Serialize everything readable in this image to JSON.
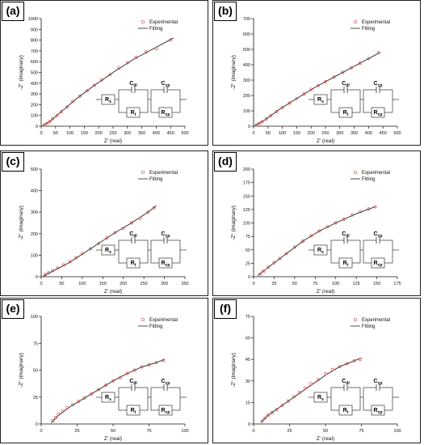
{
  "colors": {
    "experimental": "#d9534f",
    "fitting": "#222222",
    "axis": "#111111",
    "border": "#222222"
  },
  "chart_data": [
    {
      "panel_label": "(a)",
      "type": "scatter",
      "xlabel": "Z' (real)",
      "ylabel": "-Z'' (imaginary)",
      "xlim": [
        0,
        500
      ],
      "ylim": [
        0,
        1000
      ],
      "xticks": [
        0,
        50,
        100,
        150,
        200,
        250,
        300,
        350,
        400,
        450,
        500
      ],
      "yticks": [
        0,
        100,
        200,
        300,
        400,
        500,
        600,
        700,
        800,
        900,
        1000
      ],
      "legend": "top-right",
      "series": [
        {
          "name": "Experimental",
          "style": "open-circles",
          "x": [
            10,
            20,
            30,
            40,
            55,
            70,
            90,
            110,
            135,
            160,
            185,
            210,
            240,
            270,
            300,
            330,
            365,
            400,
            450
          ],
          "y": [
            12,
            25,
            45,
            70,
            100,
            135,
            180,
            230,
            280,
            330,
            380,
            430,
            480,
            540,
            590,
            640,
            690,
            720,
            800
          ]
        },
        {
          "name": "Fitting",
          "style": "line",
          "x": [
            5,
            30,
            70,
            120,
            180,
            250,
            320,
            390,
            460
          ],
          "y": [
            5,
            45,
            135,
            250,
            370,
            500,
            620,
            720,
            820
          ]
        }
      ],
      "circuit": {
        "rs": "Rs",
        "cdl": "Cdl",
        "rt": "Rt",
        "ccp": "Ccp",
        "rcp": "Rcp"
      }
    },
    {
      "panel_label": "(b)",
      "type": "scatter",
      "xlabel": "Z' (real)",
      "ylabel": "-Z'' (imaginary)",
      "xlim": [
        0,
        500
      ],
      "ylim": [
        0,
        700
      ],
      "xticks": [
        0,
        50,
        100,
        150,
        200,
        250,
        300,
        350,
        400,
        450,
        500
      ],
      "yticks": [
        0,
        100,
        200,
        300,
        400,
        500,
        600,
        700
      ],
      "legend": "top-right",
      "series": [
        {
          "name": "Experimental",
          "style": "open-circles",
          "x": [
            10,
            20,
            30,
            45,
            60,
            80,
            100,
            125,
            150,
            175,
            200,
            225,
            250,
            280,
            310,
            340,
            370,
            400,
            435
          ],
          "y": [
            8,
            18,
            30,
            48,
            68,
            95,
            122,
            150,
            180,
            210,
            240,
            265,
            290,
            320,
            350,
            380,
            410,
            440,
            480
          ]
        },
        {
          "name": "Fitting",
          "style": "line",
          "x": [
            5,
            40,
            90,
            150,
            220,
            290,
            360,
            440
          ],
          "y": [
            3,
            42,
            110,
            180,
            260,
            330,
            400,
            480
          ]
        }
      ],
      "circuit": {
        "rs": "Rs",
        "cdl": "Cdl",
        "rt": "Rt",
        "ccp": "Ccp",
        "rcp": "Rcp"
      }
    },
    {
      "panel_label": "(c)",
      "type": "scatter",
      "xlabel": "Z' (real)",
      "ylabel": "-Z'' (imaginary)",
      "xlim": [
        0,
        350
      ],
      "ylim": [
        0,
        500
      ],
      "xticks": [
        0,
        50,
        100,
        150,
        200,
        250,
        300,
        350
      ],
      "yticks": [
        0,
        100,
        200,
        300,
        400,
        500
      ],
      "legend": "top-right",
      "series": [
        {
          "name": "Experimental",
          "style": "open-circles",
          "x": [
            10,
            18,
            28,
            40,
            55,
            70,
            85,
            100,
            120,
            140,
            160,
            180,
            200,
            220,
            240,
            260,
            275
          ],
          "y": [
            10,
            18,
            28,
            40,
            55,
            70,
            88,
            108,
            130,
            155,
            180,
            205,
            225,
            250,
            270,
            300,
            320
          ]
        },
        {
          "name": "Fitting",
          "style": "line",
          "x": [
            5,
            30,
            65,
            100,
            140,
            180,
            220,
            260,
            280
          ],
          "y": [
            3,
            28,
            62,
            105,
            155,
            205,
            250,
            300,
            330
          ]
        }
      ],
      "circuit": {
        "rs": "Rs",
        "cdl": "Cdl",
        "rt": "Rt",
        "ccp": "Ccp",
        "rcp": "Rcp"
      }
    },
    {
      "panel_label": "(d)",
      "type": "scatter",
      "xlabel": "Z' (real)",
      "ylabel": "-Z'' (imaginary)",
      "xlim": [
        0,
        175
      ],
      "ylim": [
        0,
        200
      ],
      "xticks": [
        0,
        25,
        50,
        75,
        100,
        125,
        150,
        175
      ],
      "yticks": [
        0,
        25,
        50,
        75,
        100,
        125,
        150,
        175,
        200
      ],
      "legend": "top-right",
      "series": [
        {
          "name": "Experimental",
          "style": "open-circles",
          "x": [
            8,
            12,
            18,
            25,
            32,
            40,
            50,
            60,
            70,
            80,
            90,
            100,
            110,
            120,
            130,
            140,
            148
          ],
          "y": [
            5,
            10,
            18,
            26,
            34,
            43,
            55,
            66,
            76,
            85,
            93,
            100,
            107,
            115,
            121,
            126,
            130
          ]
        },
        {
          "name": "Fitting",
          "style": "line",
          "x": [
            5,
            20,
            40,
            60,
            80,
            100,
            125,
            148
          ],
          "y": [
            2,
            20,
            43,
            66,
            85,
            100,
            117,
            130
          ]
        }
      ],
      "circuit": {
        "rs": "Rs",
        "cdl": "Cdl",
        "rt": "Rt",
        "ccp": "Ccp",
        "rcp": "Rcp"
      }
    },
    {
      "panel_label": "(e)",
      "type": "scatter",
      "xlabel": "Z' (real)",
      "ylabel": "-Z'' (imaginary)",
      "xlim": [
        0,
        100
      ],
      "ylim": [
        0,
        100
      ],
      "xticks": [
        0,
        25,
        50,
        75,
        100
      ],
      "yticks": [
        0,
        25,
        50,
        75,
        100
      ],
      "legend": "top-right",
      "series": [
        {
          "name": "Experimental",
          "style": "open-circles",
          "x": [
            8,
            10,
            12,
            15,
            18,
            22,
            26,
            30,
            35,
            40,
            45,
            50,
            55,
            60,
            65,
            70,
            75,
            80,
            85
          ],
          "y": [
            3,
            6,
            9,
            12,
            15,
            18,
            21,
            24,
            28,
            32,
            36,
            40,
            43,
            47,
            50,
            53,
            55,
            57,
            59
          ]
        },
        {
          "name": "Fitting",
          "style": "line",
          "x": [
            7,
            12,
            20,
            30,
            40,
            50,
            60,
            70,
            80,
            86
          ],
          "y": [
            1,
            8,
            16,
            24,
            32,
            40,
            47,
            53,
            57,
            60
          ]
        }
      ],
      "circuit": {
        "rs": "Rs",
        "cdl": "Cdl",
        "rt": "Rt",
        "ccp": "Ccp",
        "rcp": "Rcp"
      }
    },
    {
      "panel_label": "(f)",
      "type": "scatter",
      "xlabel": "Z' (real)",
      "ylabel": "-Z'' (imaginary)",
      "xlim": [
        0,
        100
      ],
      "ylim": [
        0,
        75
      ],
      "xticks": [
        0,
        25,
        50,
        75,
        100
      ],
      "yticks": [
        0,
        15,
        30,
        45,
        60,
        75
      ],
      "legend": "top-right",
      "series": [
        {
          "name": "Experimental",
          "style": "open-circles",
          "x": [
            6,
            8,
            10,
            13,
            16,
            20,
            24,
            28,
            32,
            36,
            40,
            45,
            50,
            55,
            60,
            65,
            70,
            74
          ],
          "y": [
            2,
            4,
            6,
            8,
            10,
            13,
            16,
            19,
            22,
            25,
            28,
            31,
            35,
            38,
            40,
            42,
            44,
            45
          ]
        },
        {
          "name": "Fitting",
          "style": "line",
          "x": [
            5,
            10,
            20,
            30,
            40,
            50,
            60,
            70,
            75
          ],
          "y": [
            1,
            6,
            13,
            20,
            27,
            34,
            40,
            44,
            46
          ]
        }
      ],
      "circuit": {
        "rs": "Rs",
        "cdl": "Cdl",
        "rt": "Rt",
        "ccp": "Ccp",
        "rcp": "Rcp"
      }
    }
  ]
}
